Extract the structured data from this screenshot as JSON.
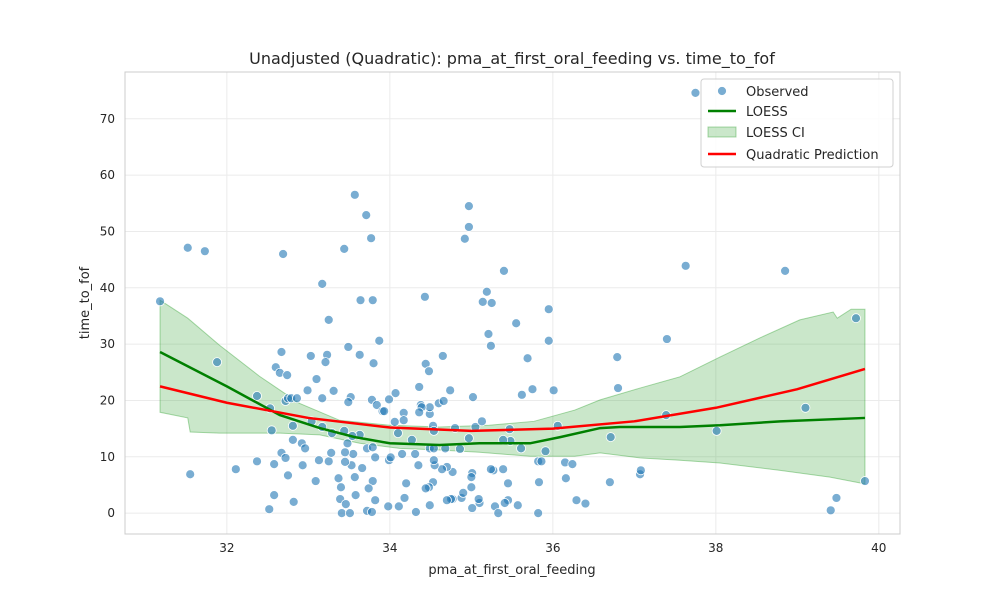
{
  "chart_data": {
    "type": "scatter",
    "title": "Unadjusted (Quadratic): pma_at_first_oral_feeding vs. time_to_fof",
    "xlabel": "pma_at_first_oral_feeding",
    "ylabel": "time_to_fof",
    "xlim": [
      30.75,
      40.26
    ],
    "ylim": [
      -3.7,
      78.3
    ],
    "xticks": [
      32,
      34,
      36,
      38,
      40
    ],
    "yticks": [
      0,
      10,
      20,
      30,
      40,
      50,
      60,
      70
    ],
    "grid": true,
    "legend_placement": "top-right",
    "legend": [
      "Observed",
      "LOESS",
      "LOESS CI",
      "Quadratic Prediction"
    ],
    "colors": {
      "observed": "#1f77b4",
      "loess": "#008000",
      "loess_ci": "#2ca02c",
      "quadratic": "#ff0000"
    },
    "observed": [
      [
        37.75,
        74.6
      ],
      [
        31.52,
        47.1
      ],
      [
        31.73,
        46.5
      ],
      [
        32.69,
        46.0
      ],
      [
        33.57,
        56.5
      ],
      [
        33.71,
        52.9
      ],
      [
        33.44,
        46.9
      ],
      [
        33.77,
        48.8
      ],
      [
        34.97,
        54.5
      ],
      [
        34.97,
        50.8
      ],
      [
        34.92,
        48.7
      ],
      [
        31.18,
        37.6
      ],
      [
        31.88,
        26.8
      ],
      [
        31.55,
        6.9
      ],
      [
        32.11,
        7.8
      ],
      [
        33.17,
        40.7
      ],
      [
        33.25,
        34.3
      ],
      [
        33.64,
        37.8
      ],
      [
        33.79,
        37.8
      ],
      [
        33.87,
        30.6
      ],
      [
        33.8,
        26.6
      ],
      [
        33.63,
        28.1
      ],
      [
        33.49,
        29.5
      ],
      [
        32.67,
        28.6
      ],
      [
        33.03,
        27.9
      ],
      [
        33.23,
        28.1
      ],
      [
        33.21,
        26.8
      ],
      [
        32.6,
        25.9
      ],
      [
        32.65,
        24.9
      ],
      [
        32.74,
        24.5
      ],
      [
        33.1,
        23.8
      ],
      [
        33.31,
        21.7
      ],
      [
        32.99,
        21.8
      ],
      [
        32.37,
        20.8
      ],
      [
        32.72,
        19.9
      ],
      [
        32.75,
        20.4
      ],
      [
        32.79,
        20.4
      ],
      [
        32.86,
        20.4
      ],
      [
        33.17,
        20.4
      ],
      [
        33.52,
        20.6
      ],
      [
        33.49,
        19.7
      ],
      [
        33.78,
        20.1
      ],
      [
        33.84,
        19.2
      ],
      [
        32.53,
        18.6
      ],
      [
        33.91,
        18.1
      ],
      [
        33.99,
        20.2
      ],
      [
        34.07,
        21.3
      ],
      [
        34.17,
        17.8
      ],
      [
        34.17,
        16.5
      ],
      [
        34.38,
        19.2
      ],
      [
        34.36,
        22.4
      ],
      [
        34.43,
        38.4
      ],
      [
        34.44,
        26.5
      ],
      [
        34.48,
        25.2
      ],
      [
        34.65,
        27.9
      ],
      [
        34.49,
        17.6
      ],
      [
        34.49,
        18.8
      ],
      [
        34.39,
        18.8
      ],
      [
        34.36,
        17.9
      ],
      [
        34.6,
        19.5
      ],
      [
        34.66,
        19.9
      ],
      [
        34.74,
        21.8
      ],
      [
        34.8,
        15.1
      ],
      [
        35.02,
        20.6
      ],
      [
        35.19,
        39.3
      ],
      [
        35.14,
        37.5
      ],
      [
        35.25,
        37.3
      ],
      [
        35.4,
        43.0
      ],
      [
        35.21,
        31.8
      ],
      [
        35.24,
        29.7
      ],
      [
        35.55,
        33.7
      ],
      [
        35.95,
        36.2
      ],
      [
        35.95,
        30.6
      ],
      [
        35.69,
        27.5
      ],
      [
        35.75,
        22.0
      ],
      [
        35.62,
        21.0
      ],
      [
        36.01,
        21.8
      ],
      [
        36.79,
        27.7
      ],
      [
        36.8,
        22.2
      ],
      [
        36.06,
        15.5
      ],
      [
        36.15,
        9.0
      ],
      [
        36.24,
        8.7
      ],
      [
        36.16,
        6.2
      ],
      [
        36.29,
        2.3
      ],
      [
        36.4,
        1.7
      ],
      [
        36.7,
        5.5
      ],
      [
        36.71,
        13.5
      ],
      [
        35.82,
        9.2
      ],
      [
        35.86,
        9.2
      ],
      [
        35.91,
        11.0
      ],
      [
        35.83,
        5.5
      ],
      [
        35.82,
        0.0
      ],
      [
        35.61,
        11.5
      ],
      [
        35.47,
        14.9
      ],
      [
        35.48,
        12.8
      ],
      [
        35.39,
        13.0
      ],
      [
        35.45,
        5.3
      ],
      [
        35.39,
        7.8
      ],
      [
        35.27,
        7.6
      ],
      [
        35.24,
        7.8
      ],
      [
        35.45,
        2.3
      ],
      [
        35.41,
        1.8
      ],
      [
        35.57,
        1.4
      ],
      [
        35.29,
        1.2
      ],
      [
        35.33,
        0.0
      ],
      [
        35.1,
        1.8
      ],
      [
        35.09,
        2.5
      ],
      [
        35.01,
        0.9
      ],
      [
        35.0,
        4.6
      ],
      [
        35.01,
        7.1
      ],
      [
        35.0,
        6.4
      ],
      [
        34.88,
        2.7
      ],
      [
        34.9,
        3.6
      ],
      [
        34.77,
        2.5
      ],
      [
        34.75,
        2.5
      ],
      [
        34.7,
        2.3
      ],
      [
        34.77,
        7.3
      ],
      [
        34.7,
        8.2
      ],
      [
        34.64,
        7.8
      ],
      [
        34.53,
        5.5
      ],
      [
        34.48,
        4.6
      ],
      [
        34.44,
        4.4
      ],
      [
        34.49,
        1.4
      ],
      [
        34.32,
        0.2
      ],
      [
        34.18,
        2.7
      ],
      [
        34.11,
        1.2
      ],
      [
        33.98,
        1.2
      ],
      [
        34.2,
        5.3
      ],
      [
        34.35,
        8.5
      ],
      [
        34.31,
        10.5
      ],
      [
        34.15,
        10.5
      ],
      [
        33.99,
        9.4
      ],
      [
        34.01,
        9.9
      ],
      [
        34.55,
        8.5
      ],
      [
        34.54,
        9.4
      ],
      [
        34.49,
        11.5
      ],
      [
        34.54,
        11.5
      ],
      [
        34.68,
        11.5
      ],
      [
        34.86,
        11.4
      ],
      [
        34.97,
        13.3
      ],
      [
        35.05,
        15.3
      ],
      [
        35.13,
        16.3
      ],
      [
        34.53,
        15.5
      ],
      [
        34.54,
        14.6
      ],
      [
        34.27,
        13.0
      ],
      [
        34.1,
        14.2
      ],
      [
        34.06,
        16.2
      ],
      [
        33.93,
        18.1
      ],
      [
        32.37,
        9.2
      ],
      [
        32.58,
        8.7
      ],
      [
        32.52,
        0.7
      ],
      [
        32.58,
        3.2
      ],
      [
        32.82,
        2.0
      ],
      [
        32.75,
        6.7
      ],
      [
        32.67,
        10.7
      ],
      [
        32.72,
        9.8
      ],
      [
        32.93,
        8.5
      ],
      [
        33.09,
        5.7
      ],
      [
        33.13,
        9.4
      ],
      [
        33.25,
        9.2
      ],
      [
        33.28,
        10.7
      ],
      [
        33.37,
        6.2
      ],
      [
        33.4,
        4.6
      ],
      [
        33.57,
        6.4
      ],
      [
        33.58,
        3.2
      ],
      [
        33.39,
        2.5
      ],
      [
        33.46,
        1.6
      ],
      [
        33.41,
        0.0
      ],
      [
        33.51,
        0.0
      ],
      [
        33.79,
        5.7
      ],
      [
        33.74,
        4.4
      ],
      [
        33.82,
        2.3
      ],
      [
        33.72,
        0.4
      ],
      [
        33.78,
        0.2
      ],
      [
        33.66,
        8.0
      ],
      [
        33.53,
        8.5
      ],
      [
        33.45,
        9.1
      ],
      [
        33.55,
        10.5
      ],
      [
        33.45,
        10.8
      ],
      [
        33.82,
        9.9
      ],
      [
        33.72,
        11.5
      ],
      [
        33.79,
        11.7
      ],
      [
        33.48,
        12.4
      ],
      [
        33.44,
        14.6
      ],
      [
        33.63,
        13.9
      ],
      [
        33.54,
        13.7
      ],
      [
        33.29,
        14.2
      ],
      [
        33.17,
        15.3
      ],
      [
        33.04,
        16.3
      ],
      [
        32.81,
        15.5
      ],
      [
        32.81,
        13.0
      ],
      [
        32.92,
        12.4
      ],
      [
        32.96,
        11.5
      ],
      [
        32.55,
        14.7
      ],
      [
        37.39,
        17.4
      ],
      [
        37.4,
        30.9
      ],
      [
        37.63,
        43.9
      ],
      [
        38.01,
        14.6
      ],
      [
        37.07,
        6.9
      ],
      [
        37.08,
        7.6
      ],
      [
        38.85,
        43.0
      ],
      [
        39.1,
        18.7
      ],
      [
        39.72,
        34.6
      ],
      [
        39.41,
        0.5
      ],
      [
        39.48,
        2.7
      ],
      [
        39.83,
        5.7
      ]
    ],
    "loess": [
      [
        31.18,
        28.6
      ],
      [
        32.0,
        22.5
      ],
      [
        32.65,
        17.4
      ],
      [
        33.14,
        15.1
      ],
      [
        33.57,
        13.5
      ],
      [
        34.0,
        12.4
      ],
      [
        34.61,
        12.1
      ],
      [
        35.1,
        12.4
      ],
      [
        35.72,
        12.4
      ],
      [
        36.09,
        13.5
      ],
      [
        36.58,
        15.1
      ],
      [
        36.82,
        15.3
      ],
      [
        37.56,
        15.3
      ],
      [
        38.05,
        15.6
      ],
      [
        38.79,
        16.3
      ],
      [
        39.83,
        16.9
      ]
    ],
    "loess_ci_upper": [
      [
        31.18,
        37.8
      ],
      [
        31.52,
        34.6
      ],
      [
        31.91,
        29.8
      ],
      [
        32.4,
        24.3
      ],
      [
        32.89,
        19.5
      ],
      [
        33.38,
        16.5
      ],
      [
        34.0,
        15.6
      ],
      [
        34.61,
        15.3
      ],
      [
        35.22,
        15.6
      ],
      [
        35.77,
        16.3
      ],
      [
        36.27,
        18.3
      ],
      [
        36.58,
        20.1
      ],
      [
        37.07,
        22.2
      ],
      [
        37.56,
        24.2
      ],
      [
        38.05,
        27.7
      ],
      [
        38.54,
        31.1
      ],
      [
        39.03,
        34.3
      ],
      [
        39.44,
        35.7
      ],
      [
        39.49,
        34.6
      ],
      [
        39.66,
        36.2
      ],
      [
        39.83,
        36.2
      ]
    ],
    "loess_ci_lower": [
      [
        31.18,
        17.9
      ],
      [
        31.52,
        16.9
      ],
      [
        31.55,
        14.4
      ],
      [
        31.91,
        14.2
      ],
      [
        32.65,
        14.2
      ],
      [
        33.14,
        13.9
      ],
      [
        33.63,
        12.4
      ],
      [
        34.12,
        11.5
      ],
      [
        34.61,
        11.2
      ],
      [
        35.1,
        10.8
      ],
      [
        35.72,
        10.1
      ],
      [
        36.27,
        10.1
      ],
      [
        36.58,
        10.7
      ],
      [
        37.07,
        9.8
      ],
      [
        37.56,
        9.4
      ],
      [
        38.05,
        8.9
      ],
      [
        38.79,
        7.6
      ],
      [
        39.4,
        6.4
      ],
      [
        39.83,
        5.2
      ]
    ],
    "quadratic": {
      "x_range": [
        31.18,
        39.83
      ],
      "points": [
        [
          31.18,
          22.5
        ],
        [
          32.0,
          19.6
        ],
        [
          33.0,
          16.9
        ],
        [
          34.0,
          15.2
        ],
        [
          35.0,
          14.6
        ],
        [
          36.0,
          15.0
        ],
        [
          37.0,
          16.3
        ],
        [
          38.0,
          18.7
        ],
        [
          39.0,
          22.0
        ],
        [
          39.83,
          25.6
        ]
      ]
    }
  }
}
